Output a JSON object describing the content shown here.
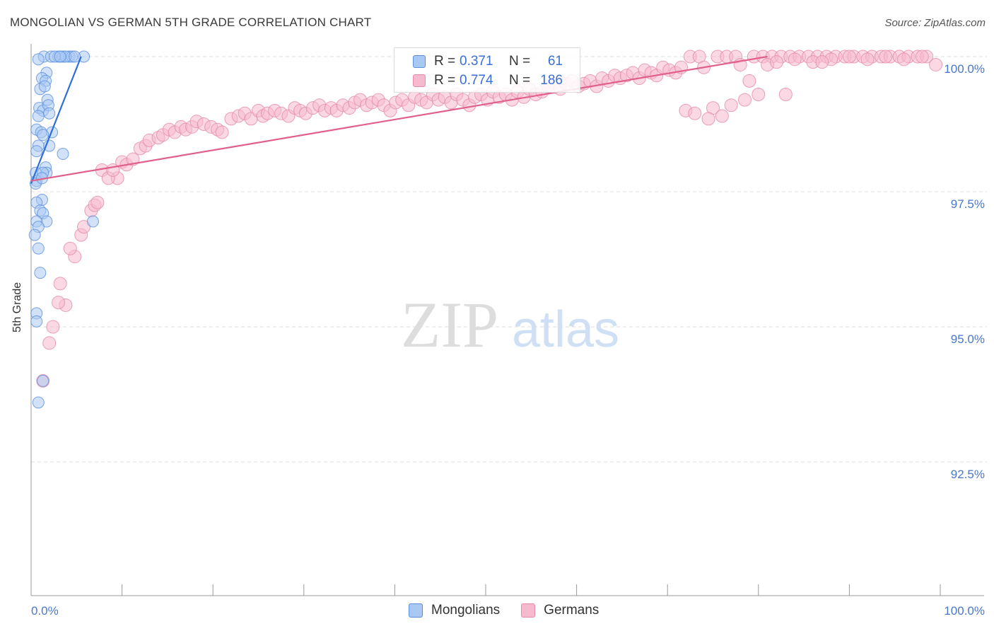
{
  "title": "MONGOLIAN VS GERMAN 5TH GRADE CORRELATION CHART",
  "source": "Source: ZipAtlas.com",
  "watermark": {
    "zip": "ZIP",
    "atlas": "atlas"
  },
  "colors": {
    "blue_fill": "#a9c8f2",
    "blue_stroke": "#5b8fdd",
    "blue_line": "#2f6fd6",
    "pink_fill": "#f6b9cd",
    "pink_stroke": "#e58aa8",
    "pink_line": "#e0608a",
    "grid": "#dcdcdc",
    "tick_text": "#4a78c8"
  },
  "legend": {
    "rows": [
      {
        "r_label": "R =",
        "r_value": "0.371",
        "n_label": "N =",
        "n_value": "61",
        "color": "blue"
      },
      {
        "r_label": "R =",
        "r_value": "0.774",
        "n_label": "N =",
        "n_value": "186",
        "color": "pink"
      }
    ]
  },
  "bottom_legend": {
    "series1": "Mongolians",
    "series2": "Germans"
  },
  "chart_data": {
    "type": "scatter",
    "title": "MONGOLIAN VS GERMAN 5TH GRADE CORRELATION CHART",
    "xlabel": "",
    "ylabel": "5th Grade",
    "xlim": [
      0,
      100
    ],
    "ylim": [
      90.0,
      100.25
    ],
    "x_tick_labels": [
      "0.0%",
      "100.0%"
    ],
    "y_ticks": [
      92.5,
      95.0,
      97.5,
      100.0
    ],
    "y_tick_labels": [
      "92.5%",
      "95.0%",
      "97.5%",
      "100.0%"
    ],
    "legend_position": "top-center",
    "series": [
      {
        "name": "Mongolians",
        "color": "blue",
        "R": 0.371,
        "N": 61,
        "trend": {
          "x": [
            0.0,
            5.5
          ],
          "y": [
            97.65,
            100.0
          ]
        },
        "points": [
          [
            1.4,
            100.0
          ],
          [
            2.2,
            100.0
          ],
          [
            3.0,
            100.0
          ],
          [
            3.5,
            100.0
          ],
          [
            4.2,
            100.0
          ],
          [
            4.5,
            100.0
          ],
          [
            5.8,
            100.0
          ],
          [
            3.8,
            100.0
          ],
          [
            4.8,
            100.0
          ],
          [
            2.6,
            100.0
          ],
          [
            3.2,
            100.0
          ],
          [
            0.8,
            99.95
          ],
          [
            1.7,
            99.7
          ],
          [
            1.2,
            99.6
          ],
          [
            1.6,
            99.55
          ],
          [
            1.0,
            99.4
          ],
          [
            1.5,
            99.45
          ],
          [
            1.8,
            99.2
          ],
          [
            0.9,
            99.05
          ],
          [
            1.3,
            99.0
          ],
          [
            1.9,
            99.1
          ],
          [
            0.8,
            98.9
          ],
          [
            2.0,
            98.95
          ],
          [
            0.6,
            98.65
          ],
          [
            1.1,
            98.6
          ],
          [
            2.3,
            98.6
          ],
          [
            1.3,
            98.55
          ],
          [
            0.8,
            98.35
          ],
          [
            2.0,
            98.35
          ],
          [
            0.6,
            98.25
          ],
          [
            3.5,
            98.2
          ],
          [
            1.6,
            97.95
          ],
          [
            1.7,
            97.85
          ],
          [
            0.5,
            97.85
          ],
          [
            1.3,
            97.85
          ],
          [
            0.6,
            97.7
          ],
          [
            0.5,
            97.65
          ],
          [
            1.2,
            97.75
          ],
          [
            1.2,
            97.35
          ],
          [
            0.6,
            97.3
          ],
          [
            1.0,
            97.15
          ],
          [
            1.3,
            97.1
          ],
          [
            1.7,
            96.95
          ],
          [
            0.6,
            96.95
          ],
          [
            0.8,
            96.85
          ],
          [
            0.4,
            96.7
          ],
          [
            6.8,
            96.95
          ],
          [
            0.8,
            96.45
          ],
          [
            1.0,
            96.0
          ],
          [
            0.6,
            95.25
          ],
          [
            0.6,
            95.1
          ],
          [
            1.3,
            94.0
          ],
          [
            0.8,
            93.6
          ]
        ]
      },
      {
        "name": "Germans",
        "color": "pink",
        "R": 0.774,
        "N": 186,
        "trend": {
          "x": [
            0.0,
            81.0
          ],
          "y": [
            97.7,
            100.0
          ]
        },
        "points": [
          [
            1.3,
            94.0
          ],
          [
            2.0,
            94.7
          ],
          [
            2.4,
            95.0
          ],
          [
            3.8,
            95.4
          ],
          [
            3.0,
            95.45
          ],
          [
            3.2,
            95.8
          ],
          [
            4.8,
            96.3
          ],
          [
            4.3,
            96.45
          ],
          [
            5.5,
            96.7
          ],
          [
            5.8,
            96.85
          ],
          [
            6.6,
            97.15
          ],
          [
            7.0,
            97.25
          ],
          [
            7.3,
            97.3
          ],
          [
            9.5,
            97.75
          ],
          [
            7.8,
            97.9
          ],
          [
            8.5,
            97.75
          ],
          [
            9.0,
            97.9
          ],
          [
            10.0,
            98.05
          ],
          [
            10.5,
            98.0
          ],
          [
            11.2,
            98.1
          ],
          [
            12.0,
            98.3
          ],
          [
            12.6,
            98.35
          ],
          [
            13.0,
            98.45
          ],
          [
            14.0,
            98.5
          ],
          [
            14.5,
            98.55
          ],
          [
            15.2,
            98.65
          ],
          [
            15.8,
            98.6
          ],
          [
            16.5,
            98.7
          ],
          [
            17.0,
            98.65
          ],
          [
            17.7,
            98.7
          ],
          [
            18.2,
            98.8
          ],
          [
            19.0,
            98.75
          ],
          [
            19.8,
            98.7
          ],
          [
            20.5,
            98.65
          ],
          [
            21.0,
            98.6
          ],
          [
            22.0,
            98.85
          ],
          [
            22.8,
            98.9
          ],
          [
            23.5,
            98.95
          ],
          [
            24.2,
            98.85
          ],
          [
            25.0,
            99.0
          ],
          [
            25.5,
            98.9
          ],
          [
            26.0,
            98.95
          ],
          [
            26.8,
            99.0
          ],
          [
            27.5,
            98.95
          ],
          [
            28.3,
            98.9
          ],
          [
            29.0,
            99.05
          ],
          [
            29.6,
            99.0
          ],
          [
            30.2,
            98.95
          ],
          [
            31.0,
            99.05
          ],
          [
            31.7,
            99.1
          ],
          [
            32.3,
            99.0
          ],
          [
            33.0,
            99.05
          ],
          [
            33.6,
            99.0
          ],
          [
            34.3,
            99.1
          ],
          [
            35.0,
            99.05
          ],
          [
            35.6,
            99.15
          ],
          [
            36.2,
            99.2
          ],
          [
            36.9,
            99.1
          ],
          [
            37.5,
            99.15
          ],
          [
            38.2,
            99.2
          ],
          [
            38.8,
            99.1
          ],
          [
            39.5,
            99.0
          ],
          [
            40.1,
            99.15
          ],
          [
            40.8,
            99.2
          ],
          [
            41.5,
            99.1
          ],
          [
            42.2,
            99.25
          ],
          [
            42.9,
            99.2
          ],
          [
            43.5,
            99.15
          ],
          [
            44.2,
            99.3
          ],
          [
            44.8,
            99.2
          ],
          [
            45.5,
            99.25
          ],
          [
            46.2,
            99.15
          ],
          [
            46.8,
            99.3
          ],
          [
            47.5,
            99.2
          ],
          [
            48.2,
            99.1
          ],
          [
            48.8,
            99.25
          ],
          [
            49.5,
            99.3
          ],
          [
            50.2,
            99.2
          ],
          [
            50.8,
            99.35
          ],
          [
            51.5,
            99.25
          ],
          [
            52.2,
            99.3
          ],
          [
            52.9,
            99.2
          ],
          [
            53.5,
            99.35
          ],
          [
            54.2,
            99.25
          ],
          [
            54.8,
            99.4
          ],
          [
            55.5,
            99.3
          ],
          [
            56.2,
            99.35
          ],
          [
            56.8,
            99.45
          ],
          [
            57.5,
            99.5
          ],
          [
            58.2,
            99.4
          ],
          [
            58.8,
            99.5
          ],
          [
            59.5,
            99.55
          ],
          [
            60.2,
            99.45
          ],
          [
            60.8,
            99.5
          ],
          [
            61.5,
            99.55
          ],
          [
            62.2,
            99.45
          ],
          [
            62.8,
            99.6
          ],
          [
            63.5,
            99.55
          ],
          [
            64.2,
            99.65
          ],
          [
            64.8,
            99.6
          ],
          [
            65.5,
            99.65
          ],
          [
            66.2,
            99.7
          ],
          [
            66.9,
            99.6
          ],
          [
            67.5,
            99.75
          ],
          [
            68.2,
            99.7
          ],
          [
            68.8,
            99.65
          ],
          [
            69.5,
            99.8
          ],
          [
            70.2,
            99.75
          ],
          [
            70.9,
            99.7
          ],
          [
            71.5,
            99.8
          ],
          [
            72.0,
            99.0
          ],
          [
            75.0,
            99.05
          ],
          [
            77.0,
            99.1
          ],
          [
            78.5,
            99.2
          ],
          [
            80.0,
            99.3
          ],
          [
            73.0,
            98.95
          ],
          [
            74.5,
            98.85
          ],
          [
            76.0,
            98.9
          ],
          [
            79.0,
            99.55
          ],
          [
            72.5,
            100.0
          ],
          [
            73.5,
            100.0
          ],
          [
            75.5,
            100.0
          ],
          [
            76.5,
            100.0
          ],
          [
            77.5,
            100.0
          ],
          [
            79.5,
            100.0
          ],
          [
            80.5,
            100.0
          ],
          [
            81.5,
            100.0
          ],
          [
            82.5,
            100.0
          ],
          [
            83.5,
            100.0
          ],
          [
            84.5,
            100.0
          ],
          [
            85.5,
            100.0
          ],
          [
            86.5,
            100.0
          ],
          [
            87.5,
            100.0
          ],
          [
            88.5,
            100.0
          ],
          [
            89.5,
            100.0
          ],
          [
            90.5,
            100.0
          ],
          [
            91.5,
            100.0
          ],
          [
            92.5,
            100.0
          ],
          [
            93.5,
            100.0
          ],
          [
            94.5,
            100.0
          ],
          [
            95.5,
            100.0
          ],
          [
            96.5,
            100.0
          ],
          [
            97.5,
            100.0
          ],
          [
            98.5,
            100.0
          ],
          [
            99.5,
            99.85
          ],
          [
            81.0,
            99.85
          ],
          [
            82.0,
            99.9
          ],
          [
            84.0,
            99.95
          ],
          [
            86.0,
            99.9
          ],
          [
            88.0,
            99.95
          ],
          [
            90.0,
            100.0
          ],
          [
            92.0,
            99.95
          ],
          [
            94.0,
            100.0
          ],
          [
            96.0,
            99.95
          ],
          [
            98.0,
            100.0
          ],
          [
            74.0,
            99.8
          ],
          [
            78.0,
            99.85
          ],
          [
            83.0,
            99.3
          ],
          [
            87.0,
            99.9
          ]
        ]
      }
    ]
  }
}
